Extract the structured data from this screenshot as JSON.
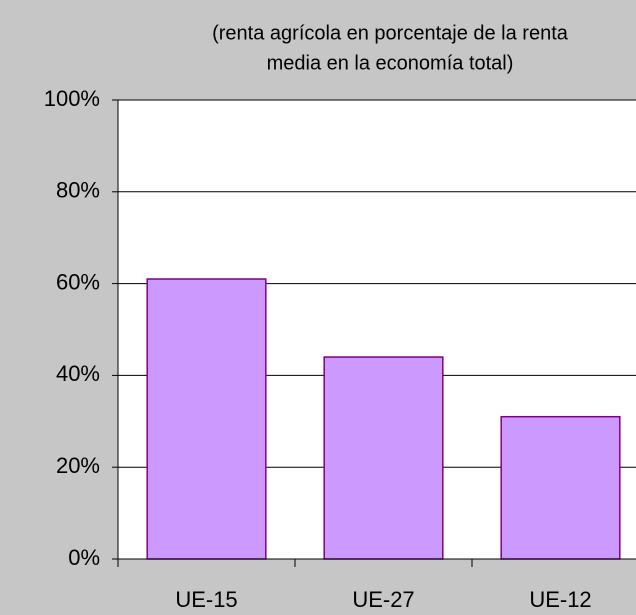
{
  "chart_data": {
    "type": "bar",
    "subtitle": [
      "(renta agrícola en porcentaje de la renta",
      "media en la economía total)"
    ],
    "categories": [
      "UE-15",
      "UE-27",
      "UE-12"
    ],
    "values": [
      61,
      44,
      31
    ],
    "color": "#cc99ff",
    "ylim": [
      0,
      100
    ],
    "yticks": [
      {
        "value": 0,
        "label": "0%"
      },
      {
        "value": 20,
        "label": "20%"
      },
      {
        "value": 40,
        "label": "40%"
      },
      {
        "value": 60,
        "label": "60%"
      },
      {
        "value": 80,
        "label": "80%"
      },
      {
        "value": 100,
        "label": "100%"
      }
    ],
    "grid": true
  }
}
